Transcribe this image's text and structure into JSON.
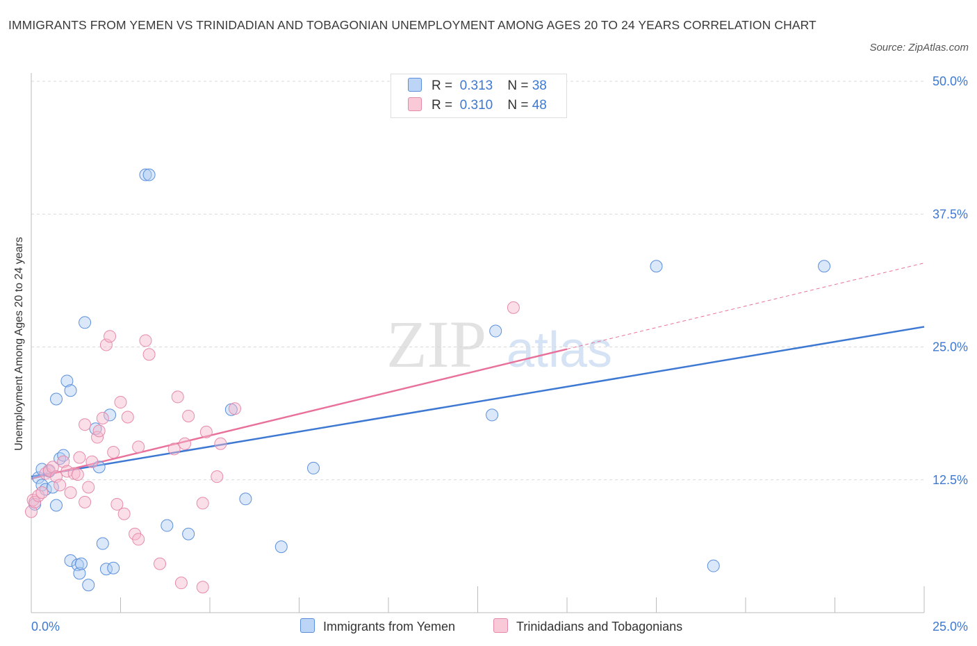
{
  "header": {
    "title": "IMMIGRANTS FROM YEMEN VS TRINIDADIAN AND TOBAGONIAN UNEMPLOYMENT AMONG AGES 20 TO 24 YEARS CORRELATION CHART",
    "source": "Source: ZipAtlas.com"
  },
  "legend": {
    "r_label": "R =",
    "n_label": "N =",
    "series1": {
      "r": "0.313",
      "n": "38",
      "name": "Immigrants from Yemen"
    },
    "series2": {
      "r": "0.310",
      "n": "48",
      "name": "Trinidadians and Tobagonians"
    }
  },
  "colors": {
    "blue": "#3d78d3",
    "blue_fill": "#aecbf2",
    "pink": "#e8709a",
    "pink_fill": "#f6b9cc",
    "grid": "#d8d8d8",
    "tick_label": "#3d78d3"
  },
  "watermark": {
    "zip": "ZIP",
    "atlas": "atlas"
  },
  "chart_data": {
    "type": "scatter",
    "xlabel": "",
    "ylabel": "Unemployment Among Ages 20 to 24 years",
    "xlim": [
      0,
      25
    ],
    "ylim": [
      0,
      50
    ],
    "x_tick_labels": [
      "0.0%",
      "25.0%"
    ],
    "y_ticks": [
      12.5,
      25.0,
      37.5,
      50.0
    ],
    "y_tick_labels": [
      "12.5%",
      "25.0%",
      "37.5%",
      "50.0%"
    ],
    "grid": "horizontal dashed",
    "legend_position": "top-center",
    "series": [
      {
        "name": "Immigrants from Yemen",
        "color": "#3d78d3",
        "points": [
          [
            0.1,
            10.2
          ],
          [
            0.2,
            12.7
          ],
          [
            0.3,
            12.0
          ],
          [
            0.3,
            13.5
          ],
          [
            0.4,
            11.6
          ],
          [
            0.5,
            13.3
          ],
          [
            0.6,
            11.8
          ],
          [
            0.7,
            10.1
          ],
          [
            0.7,
            20.1
          ],
          [
            0.8,
            14.5
          ],
          [
            0.9,
            14.8
          ],
          [
            1.0,
            21.8
          ],
          [
            1.1,
            20.9
          ],
          [
            1.1,
            4.9
          ],
          [
            1.3,
            4.5
          ],
          [
            1.35,
            3.7
          ],
          [
            1.4,
            4.6
          ],
          [
            1.5,
            27.3
          ],
          [
            1.6,
            2.6
          ],
          [
            1.8,
            17.3
          ],
          [
            1.9,
            13.7
          ],
          [
            2.0,
            6.5
          ],
          [
            2.1,
            4.1
          ],
          [
            2.2,
            18.6
          ],
          [
            2.3,
            4.2
          ],
          [
            3.2,
            41.2
          ],
          [
            3.3,
            41.2
          ],
          [
            3.8,
            8.2
          ],
          [
            4.4,
            7.4
          ],
          [
            5.6,
            19.1
          ],
          [
            6.0,
            10.7
          ],
          [
            7.0,
            6.2
          ],
          [
            7.9,
            13.6
          ],
          [
            12.9,
            18.6
          ],
          [
            13.0,
            26.5
          ],
          [
            17.5,
            32.6
          ],
          [
            19.1,
            4.4
          ],
          [
            22.2,
            32.6
          ]
        ]
      },
      {
        "name": "Trinidadians and Tobagonians",
        "color": "#e8709a",
        "points": [
          [
            0.0,
            9.5
          ],
          [
            0.05,
            10.6
          ],
          [
            0.1,
            10.4
          ],
          [
            0.2,
            11.0
          ],
          [
            0.3,
            11.3
          ],
          [
            0.4,
            13.1
          ],
          [
            0.5,
            13.4
          ],
          [
            0.6,
            13.7
          ],
          [
            0.7,
            12.8
          ],
          [
            0.8,
            12.0
          ],
          [
            0.9,
            14.2
          ],
          [
            1.0,
            13.3
          ],
          [
            1.1,
            11.3
          ],
          [
            1.2,
            13.1
          ],
          [
            1.3,
            13.0
          ],
          [
            1.35,
            14.6
          ],
          [
            1.5,
            10.4
          ],
          [
            1.5,
            17.7
          ],
          [
            1.6,
            11.8
          ],
          [
            1.7,
            14.2
          ],
          [
            1.85,
            16.5
          ],
          [
            1.9,
            17.1
          ],
          [
            2.0,
            18.3
          ],
          [
            2.1,
            25.2
          ],
          [
            2.2,
            26.0
          ],
          [
            2.3,
            15.1
          ],
          [
            2.4,
            10.2
          ],
          [
            2.5,
            19.8
          ],
          [
            2.6,
            9.3
          ],
          [
            2.7,
            18.4
          ],
          [
            2.9,
            7.4
          ],
          [
            3.0,
            6.9
          ],
          [
            3.0,
            15.6
          ],
          [
            3.2,
            25.6
          ],
          [
            3.3,
            24.3
          ],
          [
            3.6,
            4.6
          ],
          [
            4.0,
            15.4
          ],
          [
            4.1,
            20.3
          ],
          [
            4.2,
            2.8
          ],
          [
            4.3,
            15.9
          ],
          [
            4.4,
            18.5
          ],
          [
            4.8,
            2.4
          ],
          [
            4.8,
            10.3
          ],
          [
            4.9,
            17.0
          ],
          [
            5.2,
            12.8
          ],
          [
            5.3,
            15.9
          ],
          [
            5.7,
            19.2
          ],
          [
            13.5,
            28.7
          ]
        ]
      }
    ],
    "trendlines": [
      {
        "series": "Immigrants from Yemen",
        "x": [
          0,
          25
        ],
        "y": [
          12.8,
          26.9
        ],
        "style": "solid"
      },
      {
        "series": "Trinidadians and Tobagonians",
        "x": [
          0,
          15
        ],
        "y": [
          12.6,
          24.8
        ],
        "style": "solid"
      },
      {
        "series": "Trinidadians and Tobagonians",
        "x": [
          15,
          25
        ],
        "y": [
          24.8,
          32.9
        ],
        "style": "dashed"
      }
    ]
  }
}
